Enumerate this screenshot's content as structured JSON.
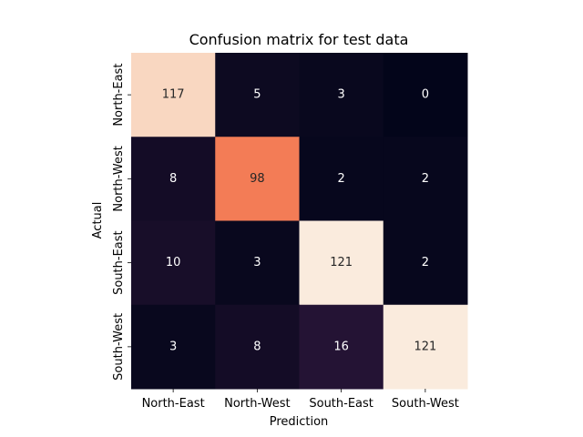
{
  "chart_data": {
    "type": "heatmap",
    "title": "Confusion matrix for test data",
    "xlabel": "Prediction",
    "ylabel": "Actual",
    "x_categories": [
      "North-East",
      "North-West",
      "South-East",
      "South-West"
    ],
    "y_categories": [
      "North-East",
      "North-West",
      "South-East",
      "South-West"
    ],
    "values": [
      [
        117,
        5,
        3,
        0
      ],
      [
        8,
        98,
        2,
        2
      ],
      [
        10,
        3,
        121,
        2
      ],
      [
        3,
        8,
        16,
        121
      ]
    ],
    "colormap": "rocket",
    "colorbar": false,
    "vmin": 0,
    "vmax": 121
  }
}
